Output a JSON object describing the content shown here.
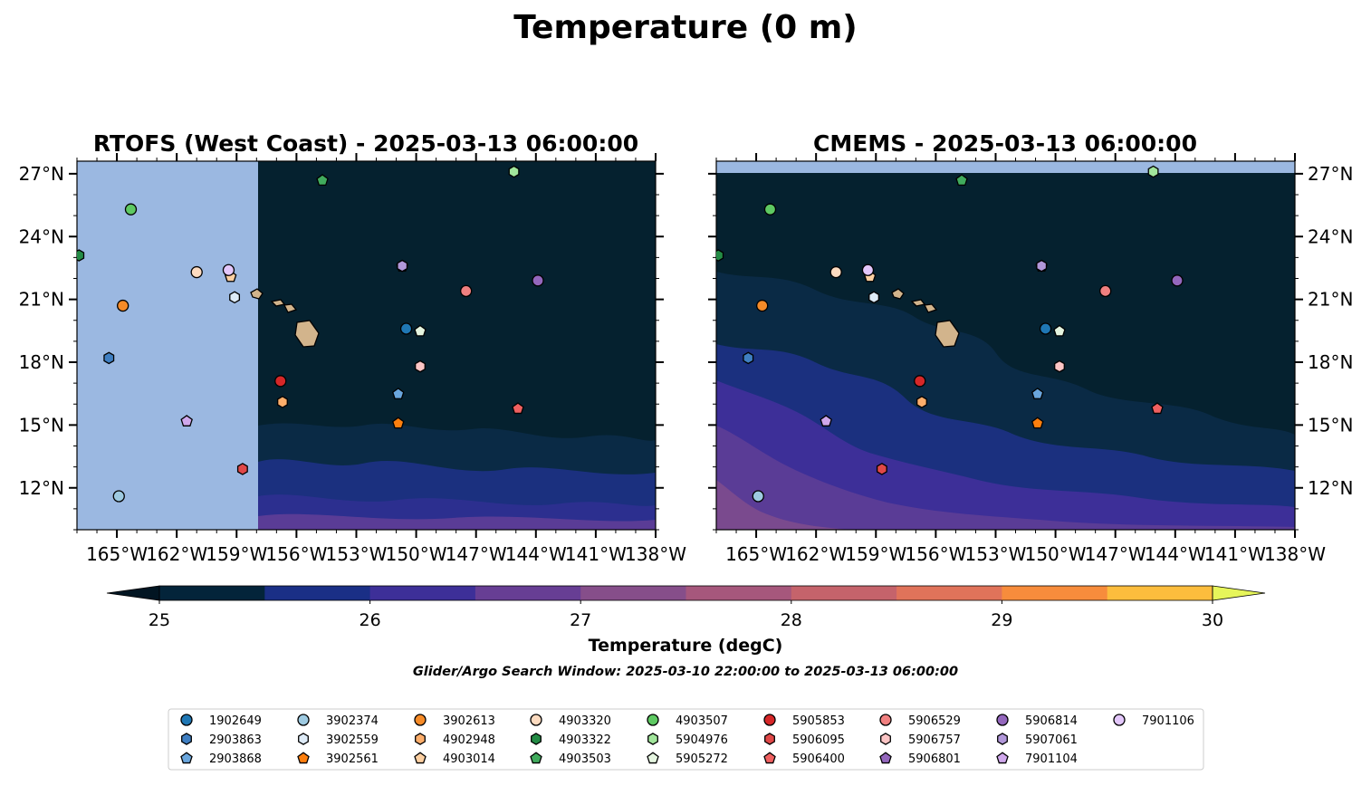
{
  "figure": {
    "title": "Temperature (0 m)",
    "search_window": "Glider/Argo Search Window: 2025-03-10 22:00:00 to 2025-03-13 06:00:00"
  },
  "chart_data": [
    {
      "type": "heatmap",
      "title": "RTOFS (West Coast) - 2025-03-13 06:00:00",
      "lon_range": [
        -167,
        -138
      ],
      "lat_range": [
        10,
        27.6
      ],
      "no_data_west_of_lon": -157.9,
      "x_ticks": [
        "165°W",
        "162°W",
        "159°W",
        "156°W",
        "153°W",
        "150°W",
        "147°W",
        "144°W",
        "141°W",
        "138°W"
      ],
      "x_tick_values": [
        -165,
        -162,
        -159,
        -156,
        -153,
        -150,
        -147,
        -144,
        -141,
        -138
      ],
      "y_ticks": [
        "12°N",
        "15°N",
        "18°N",
        "21°N",
        "24°N",
        "27°N"
      ],
      "y_tick_values": [
        12,
        15,
        18,
        21,
        24,
        27
      ],
      "y_ticks_side": "left",
      "grid": false
    },
    {
      "type": "heatmap",
      "title": "CMEMS - 2025-03-13 06:00:00",
      "lon_range": [
        -167,
        -138
      ],
      "lat_range": [
        10,
        27.6
      ],
      "no_data_north_of_lat": 27.0,
      "x_ticks": [
        "165°W",
        "162°W",
        "159°W",
        "156°W",
        "153°W",
        "150°W",
        "147°W",
        "144°W",
        "141°W",
        "138°W"
      ],
      "x_tick_values": [
        -165,
        -162,
        -159,
        -156,
        -153,
        -150,
        -147,
        -144,
        -141,
        -138
      ],
      "y_ticks": [
        "12°N",
        "15°N",
        "18°N",
        "21°N",
        "24°N",
        "27°N"
      ],
      "y_tick_values": [
        12,
        15,
        18,
        21,
        24,
        27
      ],
      "y_ticks_side": "right",
      "grid": false
    }
  ],
  "colorbar": {
    "label": "Temperature (degC)",
    "min": 25,
    "max": 30,
    "step": 0.5,
    "extend": "both",
    "ticks": [
      "25",
      "26",
      "27",
      "28",
      "29",
      "30"
    ],
    "colors": [
      "#03243a",
      "#1a2f86",
      "#3d2f98",
      "#673e94",
      "#864e8a",
      "#a6577c",
      "#c5636b",
      "#e0735a",
      "#f78c3c",
      "#fcbd3d"
    ],
    "under_color": "#021522",
    "over_color": "#e6f55a"
  },
  "floats": [
    {
      "id": "1902649",
      "marker": "circle",
      "color": "#1f77b4",
      "lon": -150.5,
      "lat": 19.6
    },
    {
      "id": "2903863",
      "marker": "hexagon",
      "color": "#3f7fc2",
      "lon": -165.4,
      "lat": 18.2
    },
    {
      "id": "2903868",
      "marker": "pentagon",
      "color": "#6aa6dd",
      "lon": -150.9,
      "lat": 16.5
    },
    {
      "id": "3902374",
      "marker": "circle",
      "color": "#9ecae1",
      "lon": -164.9,
      "lat": 11.6
    },
    {
      "id": "3902559",
      "marker": "hexagon",
      "color": "#deebf7",
      "lon": -159.1,
      "lat": 21.1
    },
    {
      "id": "3902561",
      "marker": "pentagon",
      "color": "#fd7f0e",
      "lon": -150.9,
      "lat": 15.1
    },
    {
      "id": "3902613",
      "marker": "circle",
      "color": "#f68b28",
      "lon": -164.7,
      "lat": 20.7
    },
    {
      "id": "4902948",
      "marker": "hexagon",
      "color": "#fdae6b",
      "lon": -156.7,
      "lat": 16.1
    },
    {
      "id": "4903014",
      "marker": "pentagon",
      "color": "#fdd0a2",
      "lon": -159.3,
      "lat": 22.1
    },
    {
      "id": "4903320",
      "marker": "circle",
      "color": "#fddbc0",
      "lon": -161.0,
      "lat": 22.3
    },
    {
      "id": "4903322",
      "marker": "hexagon",
      "color": "#238b45",
      "lon": -166.9,
      "lat": 23.1
    },
    {
      "id": "4903503",
      "marker": "pentagon",
      "color": "#41ab5d",
      "lon": -154.7,
      "lat": 26.7
    },
    {
      "id": "4903507",
      "marker": "circle",
      "color": "#5ec962",
      "lon": -164.3,
      "lat": 25.3
    },
    {
      "id": "5904976",
      "marker": "hexagon",
      "color": "#a1e59b",
      "lon": -145.1,
      "lat": 27.1
    },
    {
      "id": "5905272",
      "marker": "pentagon",
      "color": "#e5f5e0",
      "lon": -149.8,
      "lat": 19.5
    },
    {
      "id": "5905853",
      "marker": "circle",
      "color": "#d62728",
      "lon": -156.8,
      "lat": 17.1
    },
    {
      "id": "5906095",
      "marker": "hexagon",
      "color": "#e04848",
      "lon": -158.7,
      "lat": 12.9
    },
    {
      "id": "5906400",
      "marker": "pentagon",
      "color": "#f06060",
      "lon": -144.9,
      "lat": 15.8
    },
    {
      "id": "5906529",
      "marker": "circle",
      "color": "#f08080",
      "lon": -147.5,
      "lat": 21.4
    },
    {
      "id": "5906757",
      "marker": "hexagon",
      "color": "#fcc5c5",
      "lon": -149.8,
      "lat": 17.8
    },
    {
      "id": "5906801",
      "marker": "pentagon",
      "color": "#9467bd",
      "lon": -150.7,
      "lat": 22.6
    },
    {
      "id": "5906814",
      "marker": "circle",
      "color": "#9467bd",
      "lon": -143.9,
      "lat": 21.9
    },
    {
      "id": "5907061",
      "marker": "hexagon",
      "color": "#b197d9",
      "lon": -150.7,
      "lat": 22.6
    },
    {
      "id": "7901104",
      "marker": "pentagon",
      "color": "#d0a8ec",
      "lon": -161.5,
      "lat": 15.2
    },
    {
      "id": "7901106",
      "marker": "circle",
      "color": "#e3c7fb",
      "lon": -159.4,
      "lat": 22.4
    }
  ]
}
